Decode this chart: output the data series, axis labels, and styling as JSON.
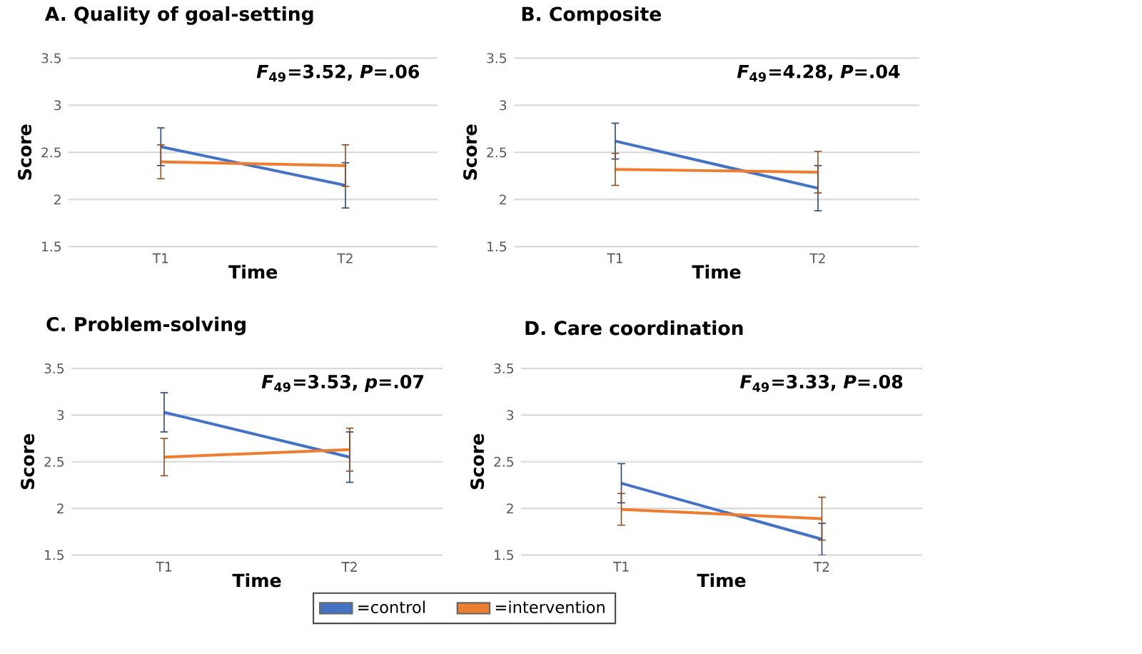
{
  "chart_data": [
    {
      "type": "line",
      "title": "A. Quality of goal-setting",
      "xlabel": "Time",
      "ylabel": "Score",
      "categories": [
        "T1",
        "T2"
      ],
      "ylim": [
        1.5,
        3.5
      ],
      "yticks": [
        1.5,
        2,
        2.5,
        3,
        3.5
      ],
      "grid": "y",
      "line_style": "solid",
      "annotations": [
        "*F*$_{49}$=3.52, *P*=.06"
      ],
      "series": [
        {
          "color": "#4472c4",
          "values": [
            2.56,
            2.15
          ],
          "errors": [
            0.2,
            0.24
          ]
        },
        {
          "color": "#ed7d31",
          "values": [
            2.4,
            2.36
          ],
          "errors": [
            0.18,
            0.22
          ]
        }
      ]
    },
    {
      "type": "line",
      "title": "B. Composite",
      "xlabel": "Time",
      "ylabel": "Score",
      "categories": [
        "T1",
        "T2"
      ],
      "ylim": [
        1.5,
        3.5
      ],
      "yticks": [
        1.5,
        2,
        2.5,
        3,
        3.5
      ],
      "grid": "y",
      "line_style": "solid",
      "annotations": [
        "*F*$_{49}$=4.28, *P*=.04"
      ],
      "series": [
        {
          "color": "#4472c4",
          "values": [
            2.62,
            2.12
          ],
          "errors": [
            0.19,
            0.24
          ]
        },
        {
          "color": "#ed7d31",
          "values": [
            2.32,
            2.29
          ],
          "errors": [
            0.17,
            0.22
          ]
        }
      ]
    },
    {
      "type": "line",
      "title": "C. Problem-solving",
      "xlabel": "Time",
      "ylabel": "Score",
      "categories": [
        "T1",
        "T2"
      ],
      "ylim": [
        1.5,
        3.5
      ],
      "yticks": [
        1.5,
        2,
        2.5,
        3,
        3.5
      ],
      "grid": "y",
      "line_style": "solid",
      "legend": "bottom",
      "annotations": [
        "*F*$_{49}$=3.53, *p*=.07"
      ],
      "series": [
        {
          "name": "=control",
          "color": "#4472c4",
          "values": [
            3.03,
            2.55
          ],
          "errors": [
            0.21,
            0.27
          ]
        },
        {
          "name": "=intervention",
          "color": "#ed7d31",
          "values": [
            2.55,
            2.63
          ],
          "errors": [
            0.2,
            0.23
          ]
        }
      ]
    },
    {
      "type": "line",
      "title": "D. Care coordination",
      "xlabel": "Time",
      "ylabel": "Score",
      "categories": [
        "T1",
        "T2"
      ],
      "ylim": [
        1.5,
        3.5
      ],
      "yticks": [
        1.5,
        2,
        2.5,
        3,
        3.5
      ],
      "grid": "y",
      "line_style": "solid",
      "annotations": [
        "*F*$_{49}$=3.33, *P*=.08"
      ],
      "series": [
        {
          "color": "#4472c4",
          "values": [
            2.27,
            1.67
          ],
          "errors": [
            0.21,
            0.17
          ]
        },
        {
          "color": "#ed7d31",
          "values": [
            1.99,
            1.89
          ],
          "errors": [
            0.17,
            0.23
          ]
        }
      ]
    }
  ]
}
